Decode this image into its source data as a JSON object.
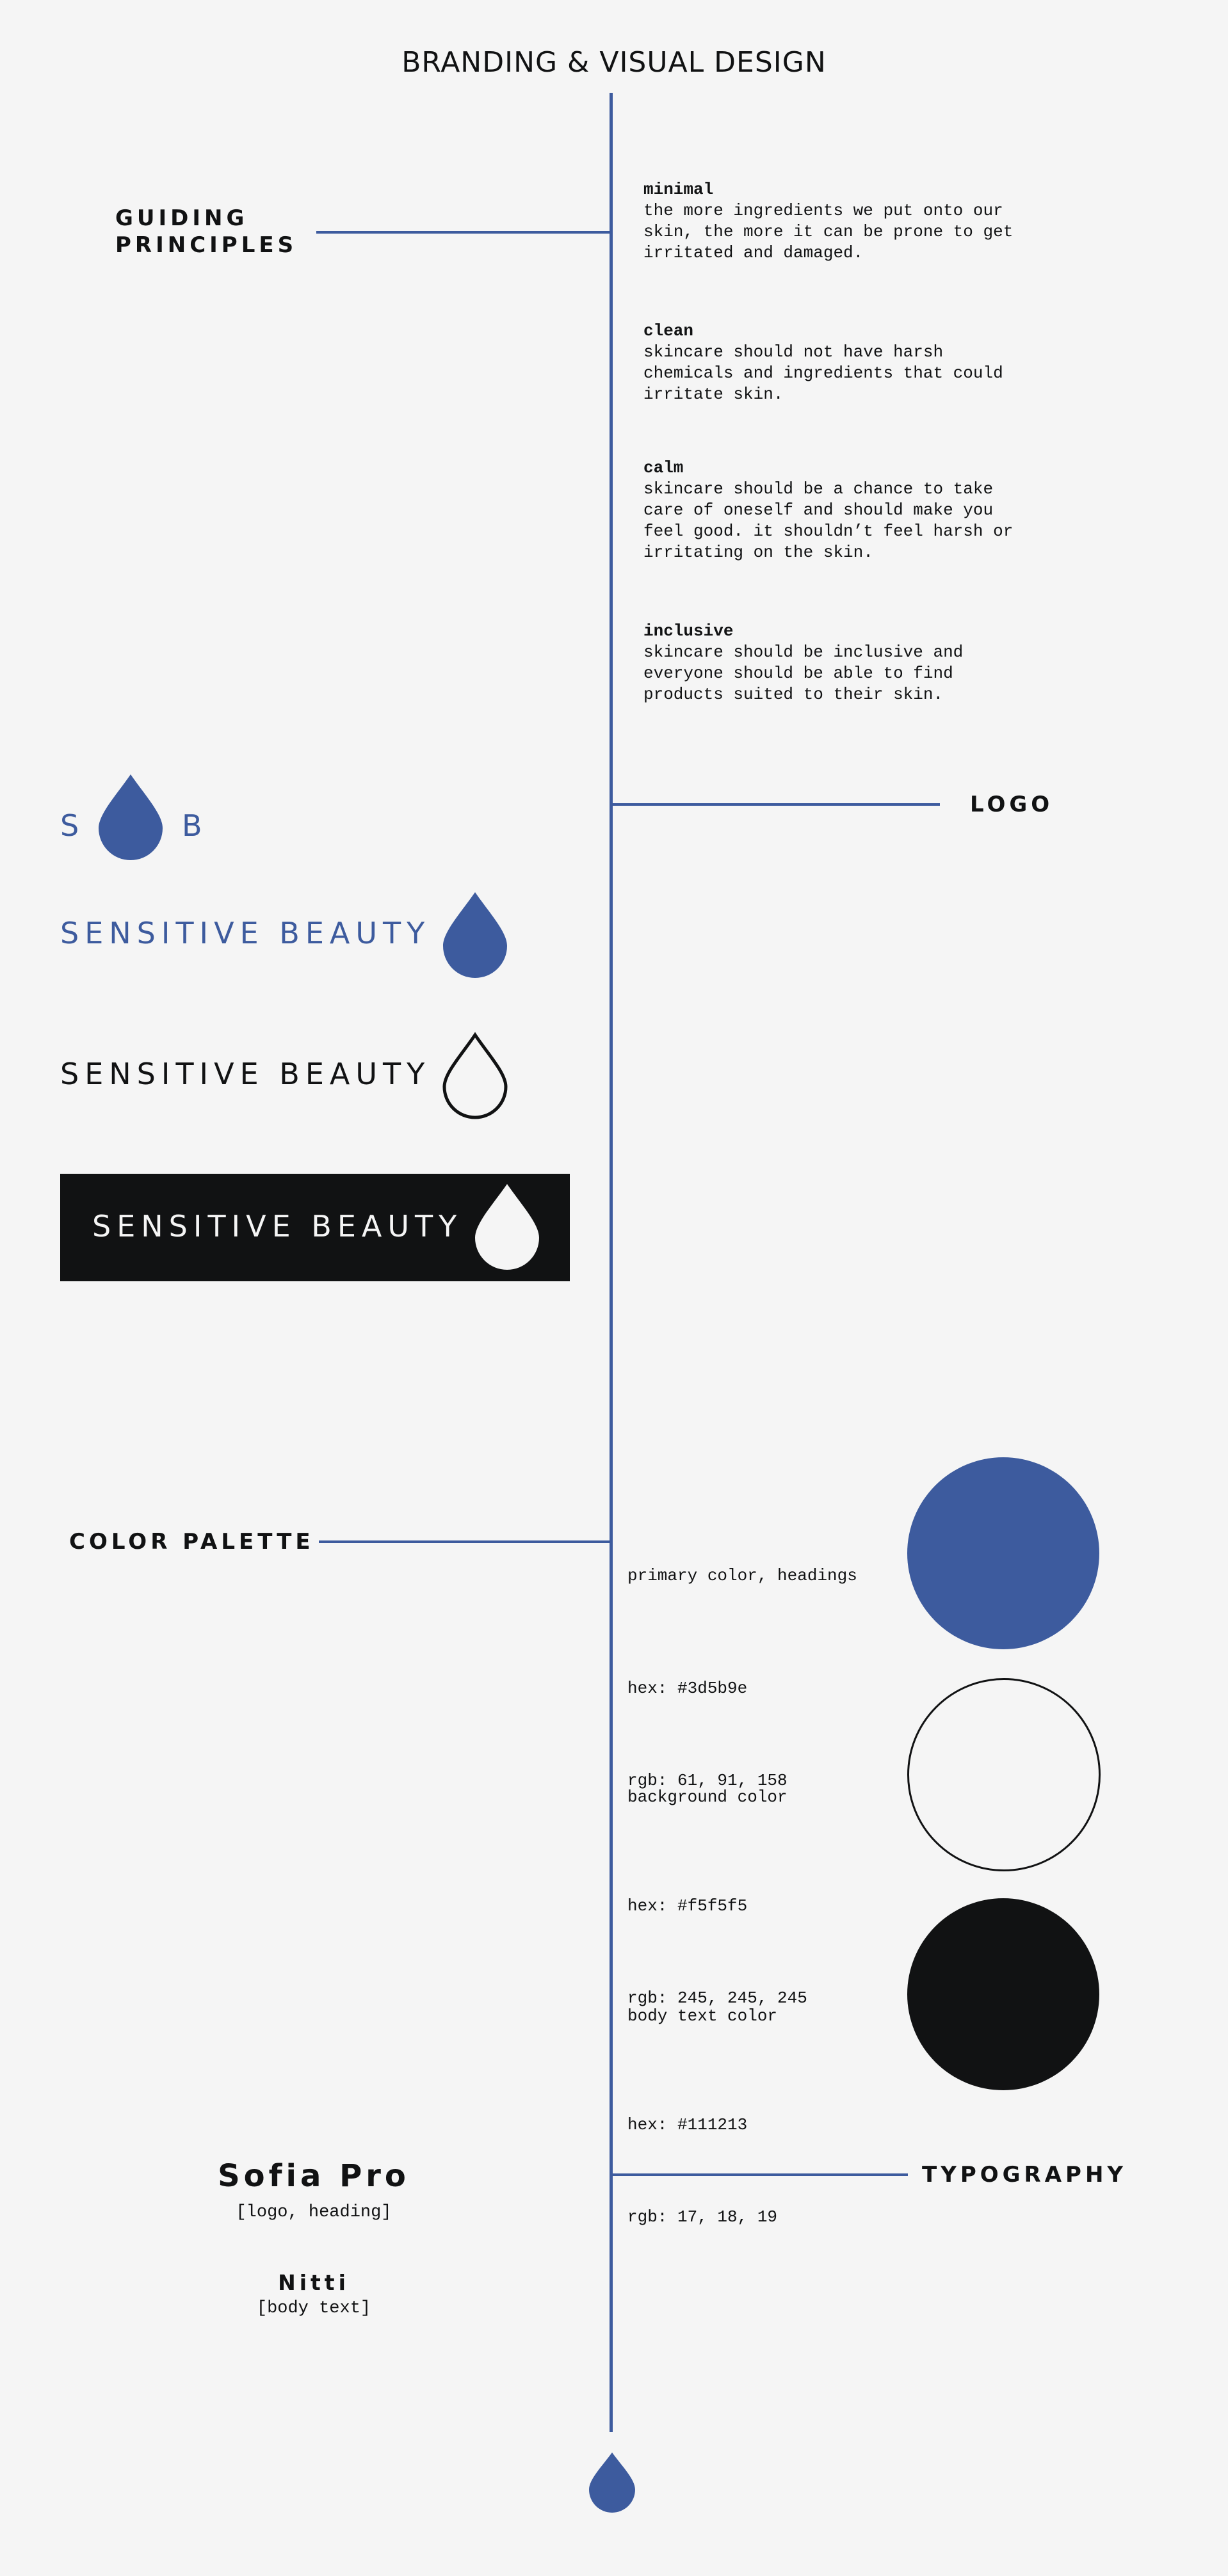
{
  "page": {
    "title": "BRANDING & VISUAL DESIGN"
  },
  "colors": {
    "accent": "#3d5b9e",
    "background": "#f5f5f5",
    "text": "#111213"
  },
  "guiding_principles": {
    "label_line1": "GUIDING",
    "label_line2": "PRINCIPLES",
    "items": [
      {
        "title": "minimal",
        "body": "the more ingredients we put onto our\nskin, the more it can be prone to get\nirritated and damaged."
      },
      {
        "title": "clean",
        "body": "skincare should not have harsh\nchemicals and ingredients that could\nirritate skin."
      },
      {
        "title": "calm",
        "body": "skincare should be a chance to take\ncare of oneself and should make you\nfeel good. it shouldn’t feel harsh or\nirritating on the skin."
      },
      {
        "title": "inclusive",
        "body": "skincare should be inclusive and\neveryone should be able to find\nproducts suited to their skin."
      }
    ]
  },
  "logo": {
    "label": "LOGO",
    "monogram_left": "S",
    "monogram_right": "B",
    "wordmark": "SENSITIVE BEAUTY",
    "icon": "droplet-icon"
  },
  "color_palette": {
    "label": "COLOR PALETTE",
    "swatches": [
      {
        "name": "primary color, headings",
        "hex": "hex: #3d5b9e",
        "rgb": "rgb: 61, 91, 158",
        "color": "#3d5b9e"
      },
      {
        "name": "background color",
        "hex": "hex: #f5f5f5",
        "rgb": "rgb: 245, 245, 245",
        "color": "#f5f5f5"
      },
      {
        "name": "body text color",
        "hex": "hex: #111213",
        "rgb": "rgb: 17, 18, 19",
        "color": "#111213"
      }
    ]
  },
  "typography": {
    "label": "TYPOGRAPHY",
    "fonts": [
      {
        "name": "Sofia Pro",
        "usage": "[logo, heading]"
      },
      {
        "name": "Nitti",
        "usage": "[body text]"
      }
    ]
  }
}
